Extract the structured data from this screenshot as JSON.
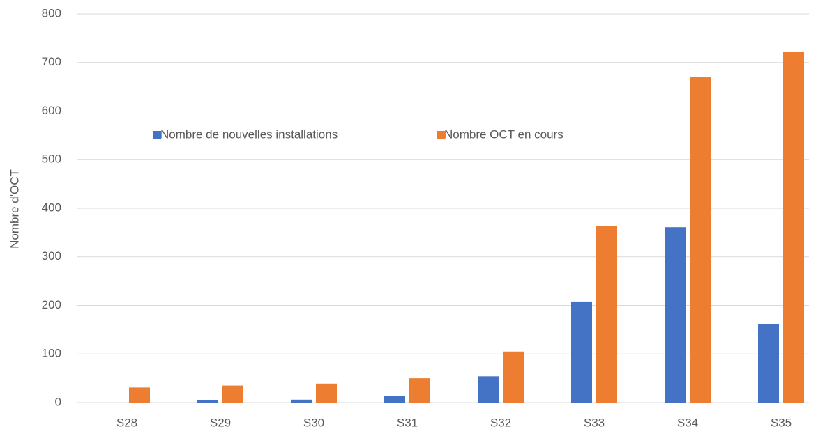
{
  "chart_data": {
    "type": "bar",
    "y_label": "Nombre d'OCT",
    "categories": [
      "S28",
      "S29",
      "S30",
      "S31",
      "S32",
      "S33",
      "S34",
      "S35"
    ],
    "series": [
      {
        "name": "Nombre de nouvelles installations",
        "color": "#4472c4",
        "values": [
          0,
          5,
          6,
          13,
          54,
          208,
          361,
          162
        ]
      },
      {
        "name": "Nombre OCT en cours",
        "color": "#ed7d31",
        "values": [
          31,
          35,
          39,
          50,
          105,
          363,
          670,
          722
        ]
      }
    ],
    "ylim": [
      0,
      800
    ],
    "yticks": [
      0,
      100,
      200,
      300,
      400,
      500,
      600,
      700,
      800
    ],
    "grid": true
  }
}
